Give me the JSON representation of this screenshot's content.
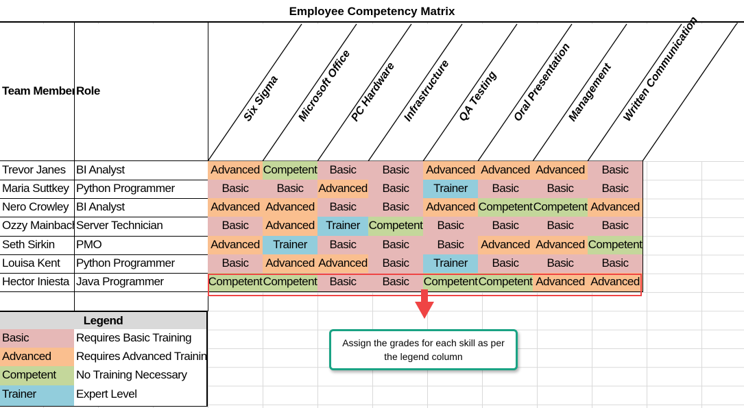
{
  "title": "Employee Competency Matrix",
  "headers": {
    "member": "Team Member",
    "role": "Role",
    "skills": [
      "Six Sigma",
      "Microsoft Office",
      "PC Hardware",
      "Infrastructure",
      "QA Testing",
      "Oral Presentation",
      "Management",
      "Written Communication"
    ]
  },
  "rows": [
    {
      "name": "Trevor Janes",
      "role": "BI Analyst",
      "grades": [
        "Advanced",
        "Competent",
        "Basic",
        "Basic",
        "Advanced",
        "Advanced",
        "Advanced",
        "Basic"
      ]
    },
    {
      "name": "Maria Suttkey",
      "role": "Python Programmer",
      "grades": [
        "Basic",
        "Basic",
        "Advanced",
        "Basic",
        "Trainer",
        "Basic",
        "Basic",
        "Basic"
      ]
    },
    {
      "name": "Nero Crowley",
      "role": "BI Analyst",
      "grades": [
        "Advanced",
        "Advanced",
        "Basic",
        "Basic",
        "Advanced",
        "Competent",
        "Competent",
        "Advanced"
      ]
    },
    {
      "name": "Ozzy Mainbach",
      "role": "Server Technician",
      "grades": [
        "Basic",
        "Advanced",
        "Trainer",
        "Competent",
        "Basic",
        "Basic",
        "Basic",
        "Basic"
      ]
    },
    {
      "name": "Seth Sirkin",
      "role": "PMO",
      "grades": [
        "Advanced",
        "Trainer",
        "Basic",
        "Basic",
        "Basic",
        "Advanced",
        "Advanced",
        "Competent"
      ]
    },
    {
      "name": "Louisa Kent",
      "role": "Python Programmer",
      "grades": [
        "Basic",
        "Advanced",
        "Advanced",
        "Basic",
        "Trainer",
        "Basic",
        "Basic",
        "Basic"
      ]
    },
    {
      "name": "Hector Iniesta",
      "role": "Java Programmer",
      "grades": [
        "Competent",
        "Competent",
        "Basic",
        "Basic",
        "Competent",
        "Competent",
        "Advanced",
        "Advanced"
      ]
    }
  ],
  "legend": {
    "title": "Legend",
    "items": [
      {
        "grade": "Basic",
        "desc": "Requires Basic Training"
      },
      {
        "grade": "Advanced",
        "desc": "Requires Advanced Training"
      },
      {
        "grade": "Competent",
        "desc": "No Training Necessary"
      },
      {
        "grade": "Trainer",
        "desc": "Expert Level"
      }
    ]
  },
  "colors": {
    "Basic": "#e6b8b7",
    "Advanced": "#fabf8f",
    "Competent": "#c4d79b",
    "Trainer": "#92cddc",
    "highlight": "#ef4444",
    "callout_border": "#1aa384"
  },
  "callout": "Assign the grades for each skill as per the legend column"
}
